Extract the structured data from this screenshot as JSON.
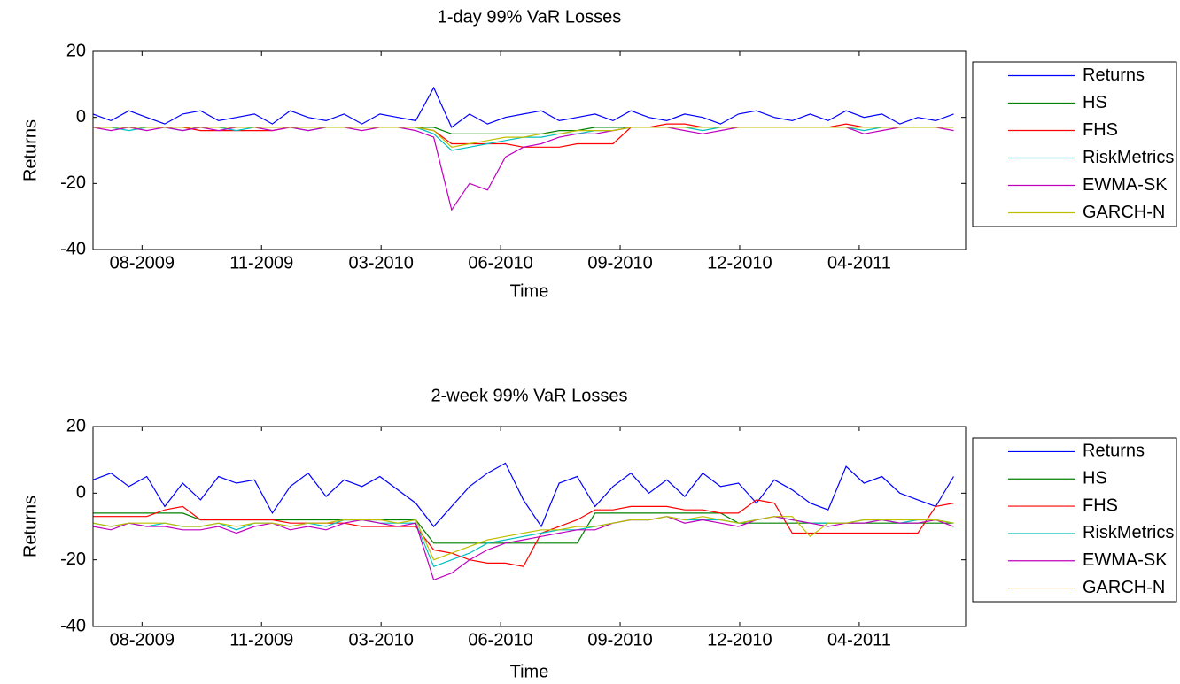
{
  "chart_data": [
    {
      "type": "line",
      "title": "1-day 99% VaR Losses",
      "xlabel": "Time",
      "ylabel": "Returns",
      "x": [
        0,
        15,
        30,
        45,
        60,
        75,
        90,
        105,
        120,
        135,
        150,
        165,
        180,
        195,
        210,
        225,
        240,
        255,
        270,
        285,
        300,
        315,
        330,
        345,
        360,
        375,
        390,
        405,
        420,
        435,
        450,
        465,
        480,
        495,
        510,
        525,
        540,
        555,
        570,
        585,
        600,
        615,
        630,
        645,
        660,
        675,
        690,
        705,
        720
      ],
      "xlim": [
        0,
        730
      ],
      "ylim": [
        -40,
        20
      ],
      "yticks": [
        -40,
        -20,
        0,
        20
      ],
      "xticks": [
        {
          "value": 41,
          "label": "08-2009"
        },
        {
          "value": 141,
          "label": "11-2009"
        },
        {
          "value": 241,
          "label": "03-2010"
        },
        {
          "value": 341,
          "label": "06-2010"
        },
        {
          "value": 441,
          "label": "09-2010"
        },
        {
          "value": 541,
          "label": "12-2010"
        },
        {
          "value": 641,
          "label": "04-2011"
        }
      ],
      "legend": "outside-right",
      "series": [
        {
          "name": "Returns",
          "color": "#0000ff",
          "values": [
            1,
            -1,
            2,
            0,
            -2,
            1,
            2,
            -1,
            0,
            1,
            -2,
            2,
            0,
            -1,
            1,
            -2,
            1,
            0,
            -1,
            9,
            -3,
            1,
            -2,
            0,
            1,
            2,
            -1,
            0,
            1,
            -1,
            2,
            0,
            -1,
            1,
            0,
            -2,
            1,
            2,
            0,
            -1,
            1,
            -1,
            2,
            0,
            1,
            -2,
            0,
            -1,
            1
          ]
        },
        {
          "name": "HS",
          "color": "#008000",
          "values": [
            -3,
            -3,
            -3,
            -3,
            -3,
            -3,
            -3,
            -3,
            -3,
            -3,
            -3,
            -3,
            -3,
            -3,
            -3,
            -3,
            -3,
            -3,
            -3,
            -3,
            -5,
            -5,
            -5,
            -5,
            -5,
            -5,
            -4,
            -4,
            -3,
            -3,
            -3,
            -3,
            -3,
            -3,
            -3,
            -3,
            -3,
            -3,
            -3,
            -3,
            -3,
            -3,
            -3,
            -3,
            -3,
            -3,
            -3,
            -3,
            -3
          ]
        },
        {
          "name": "FHS",
          "color": "#ff0000",
          "values": [
            -3,
            -3,
            -3,
            -3,
            -3,
            -3,
            -4,
            -4,
            -4,
            -4,
            -4,
            -3,
            -3,
            -3,
            -3,
            -3,
            -3,
            -3,
            -3,
            -4,
            -8,
            -8,
            -8,
            -8,
            -9,
            -9,
            -9,
            -8,
            -8,
            -8,
            -3,
            -3,
            -2,
            -2,
            -3,
            -3,
            -3,
            -3,
            -3,
            -3,
            -3,
            -3,
            -2,
            -3,
            -3,
            -3,
            -3,
            -3,
            -3
          ]
        },
        {
          "name": "RiskMetrics",
          "color": "#00bfbf",
          "values": [
            -3,
            -3,
            -4,
            -3,
            -3,
            -4,
            -3,
            -3,
            -4,
            -3,
            -3,
            -3,
            -4,
            -3,
            -3,
            -3,
            -3,
            -3,
            -3,
            -5,
            -10,
            -9,
            -8,
            -7,
            -6,
            -6,
            -5,
            -5,
            -4,
            -4,
            -3,
            -3,
            -3,
            -3,
            -4,
            -3,
            -3,
            -3,
            -3,
            -3,
            -3,
            -3,
            -3,
            -4,
            -3,
            -3,
            -3,
            -3,
            -3
          ]
        },
        {
          "name": "EWMA-SK",
          "color": "#bf00bf",
          "values": [
            -3,
            -4,
            -3,
            -4,
            -3,
            -4,
            -3,
            -4,
            -3,
            -3,
            -4,
            -3,
            -4,
            -3,
            -3,
            -4,
            -3,
            -3,
            -4,
            -6,
            -28,
            -20,
            -22,
            -12,
            -9,
            -8,
            -6,
            -5,
            -5,
            -4,
            -3,
            -3,
            -3,
            -4,
            -5,
            -4,
            -3,
            -3,
            -3,
            -3,
            -3,
            -3,
            -3,
            -5,
            -4,
            -3,
            -3,
            -3,
            -4
          ]
        },
        {
          "name": "GARCH-N",
          "color": "#bfbf00",
          "values": [
            -3,
            -3,
            -3,
            -3,
            -3,
            -3,
            -3,
            -3,
            -3,
            -3,
            -3,
            -3,
            -3,
            -3,
            -3,
            -3,
            -3,
            -3,
            -3,
            -4,
            -9,
            -8,
            -7,
            -6,
            -6,
            -5,
            -5,
            -4,
            -4,
            -4,
            -3,
            -3,
            -3,
            -3,
            -3,
            -3,
            -3,
            -3,
            -3,
            -3,
            -3,
            -3,
            -3,
            -3,
            -3,
            -3,
            -3,
            -3,
            -3
          ]
        }
      ]
    },
    {
      "type": "line",
      "title": "2-week 99% VaR Losses",
      "xlabel": "Time",
      "ylabel": "Returns",
      "x": [
        0,
        15,
        30,
        45,
        60,
        75,
        90,
        105,
        120,
        135,
        150,
        165,
        180,
        195,
        210,
        225,
        240,
        255,
        270,
        285,
        300,
        315,
        330,
        345,
        360,
        375,
        390,
        405,
        420,
        435,
        450,
        465,
        480,
        495,
        510,
        525,
        540,
        555,
        570,
        585,
        600,
        615,
        630,
        645,
        660,
        675,
        690,
        705,
        720
      ],
      "xlim": [
        0,
        730
      ],
      "ylim": [
        -40,
        20
      ],
      "yticks": [
        -40,
        -20,
        0,
        20
      ],
      "xticks": [
        {
          "value": 41,
          "label": "08-2009"
        },
        {
          "value": 141,
          "label": "11-2009"
        },
        {
          "value": 241,
          "label": "03-2010"
        },
        {
          "value": 341,
          "label": "06-2010"
        },
        {
          "value": 441,
          "label": "09-2010"
        },
        {
          "value": 541,
          "label": "12-2010"
        },
        {
          "value": 641,
          "label": "04-2011"
        }
      ],
      "legend": "outside-right",
      "series": [
        {
          "name": "Returns",
          "color": "#0000ff",
          "values": [
            4,
            6,
            2,
            5,
            -4,
            3,
            -2,
            5,
            3,
            4,
            -6,
            2,
            6,
            -1,
            4,
            2,
            5,
            1,
            -3,
            -10,
            -4,
            2,
            6,
            9,
            -2,
            -10,
            3,
            5,
            -4,
            2,
            6,
            0,
            4,
            -1,
            6,
            2,
            3,
            -3,
            4,
            1,
            -3,
            -5,
            8,
            3,
            5,
            0,
            -2,
            -4,
            5
          ]
        },
        {
          "name": "HS",
          "color": "#008000",
          "values": [
            -6,
            -6,
            -6,
            -6,
            -6,
            -6,
            -8,
            -8,
            -8,
            -8,
            -8,
            -8,
            -8,
            -8,
            -8,
            -8,
            -8,
            -8,
            -8,
            -15,
            -15,
            -15,
            -15,
            -15,
            -15,
            -15,
            -15,
            -15,
            -6,
            -6,
            -6,
            -6,
            -6,
            -6,
            -6,
            -6,
            -9,
            -9,
            -9,
            -9,
            -9,
            -9,
            -9,
            -9,
            -9,
            -9,
            -9,
            -9,
            -9
          ]
        },
        {
          "name": "FHS",
          "color": "#ff0000",
          "values": [
            -7,
            -7,
            -7,
            -7,
            -5,
            -4,
            -8,
            -8,
            -8,
            -8,
            -8,
            -9,
            -9,
            -9,
            -9,
            -10,
            -10,
            -10,
            -10,
            -17,
            -18,
            -20,
            -21,
            -21,
            -22,
            -12,
            -10,
            -8,
            -5,
            -5,
            -4,
            -4,
            -4,
            -5,
            -5,
            -6,
            -6,
            -2,
            -3,
            -12,
            -12,
            -12,
            -12,
            -12,
            -12,
            -12,
            -12,
            -4,
            -3
          ]
        },
        {
          "name": "RiskMetrics",
          "color": "#00bfbf",
          "values": [
            -9,
            -10,
            -9,
            -10,
            -9,
            -10,
            -10,
            -9,
            -11,
            -9,
            -9,
            -10,
            -9,
            -10,
            -8,
            -8,
            -9,
            -9,
            -9,
            -22,
            -20,
            -18,
            -15,
            -14,
            -13,
            -12,
            -11,
            -11,
            -10,
            -9,
            -8,
            -8,
            -7,
            -8,
            -8,
            -8,
            -9,
            -8,
            -7,
            -8,
            -9,
            -9,
            -9,
            -8,
            -8,
            -9,
            -8,
            -8,
            -9
          ]
        },
        {
          "name": "EWMA-SK",
          "color": "#bf00bf",
          "values": [
            -10,
            -11,
            -9,
            -10,
            -10,
            -11,
            -11,
            -10,
            -12,
            -10,
            -9,
            -11,
            -10,
            -11,
            -9,
            -8,
            -9,
            -10,
            -9,
            -26,
            -24,
            -20,
            -17,
            -15,
            -14,
            -13,
            -12,
            -11,
            -11,
            -9,
            -8,
            -8,
            -7,
            -9,
            -8,
            -9,
            -10,
            -8,
            -7,
            -8,
            -9,
            -10,
            -9,
            -9,
            -8,
            -9,
            -9,
            -8,
            -10
          ]
        },
        {
          "name": "GARCH-N",
          "color": "#bfbf00",
          "values": [
            -9,
            -10,
            -9,
            -9,
            -9,
            -10,
            -10,
            -9,
            -10,
            -9,
            -9,
            -10,
            -9,
            -9,
            -8,
            -8,
            -8,
            -9,
            -8,
            -20,
            -18,
            -16,
            -14,
            -13,
            -12,
            -11,
            -11,
            -10,
            -10,
            -9,
            -8,
            -8,
            -7,
            -8,
            -7,
            -8,
            -9,
            -8,
            -7,
            -7,
            -13,
            -9,
            -9,
            -8,
            -8,
            -8,
            -8,
            -8,
            -9
          ]
        }
      ]
    }
  ]
}
